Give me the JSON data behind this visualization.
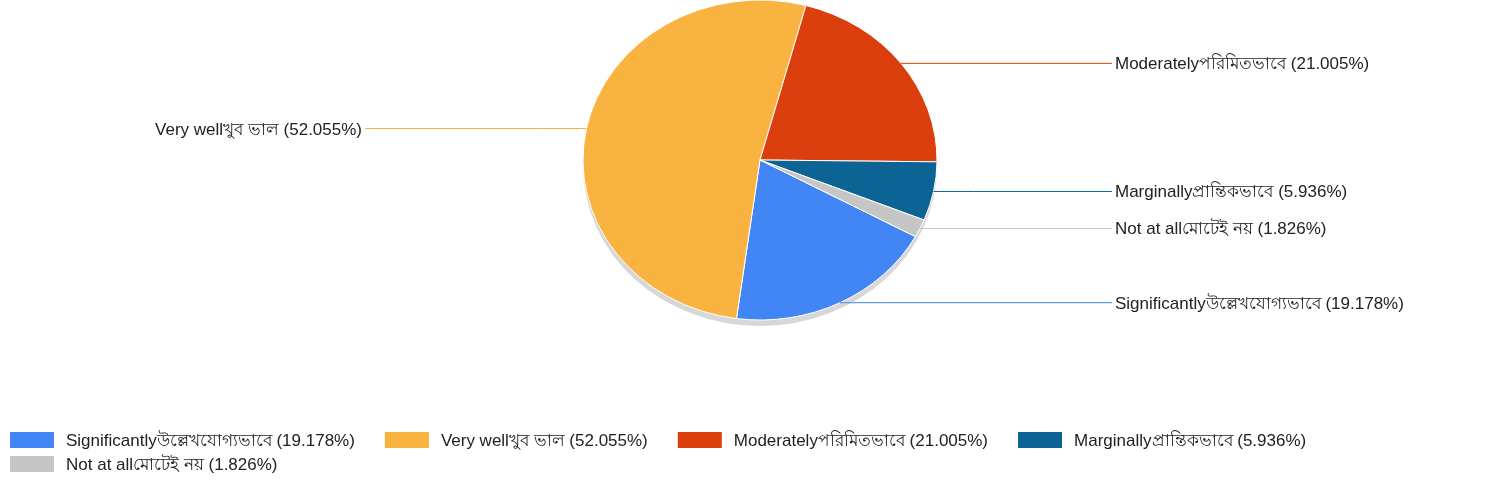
{
  "chart_data": {
    "type": "pie",
    "categories": [
      "Significantlyউল্লেখযোগ্যভাবে (19.178%)",
      "Very wellখুব ভাল (52.055%)",
      "Moderatelyপরিমিতভাবে (21.005%)",
      "Marginallyপ্রান্তিকভাবে (5.936%)",
      "Not at allমোটেই নয় (1.826%)"
    ],
    "values": [
      19.178,
      52.055,
      21.005,
      5.936,
      1.826
    ],
    "colors": [
      "#4285f4",
      "#f9b341",
      "#dc3f0e",
      "#0b6494",
      "#c6c6c6"
    ],
    "legend": "bottom"
  }
}
